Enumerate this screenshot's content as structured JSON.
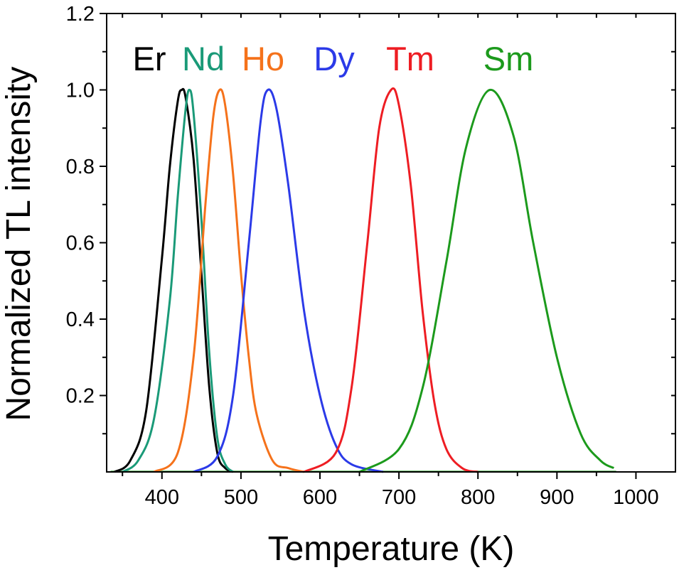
{
  "chart_data": {
    "type": "line",
    "title": "",
    "xlabel": "Temperature (K)",
    "ylabel": "Normalized TL intensity",
    "xlim": [
      330,
      1050
    ],
    "ylim": [
      0,
      1.2
    ],
    "x_ticks": [
      400,
      500,
      600,
      700,
      800,
      900,
      1000
    ],
    "x_tick_labels": [
      "400",
      "500",
      "600",
      "700",
      "800",
      "900",
      "1000"
    ],
    "y_ticks": [
      0.2,
      0.4,
      0.6,
      0.8,
      1.0,
      1.2
    ],
    "y_tick_labels": [
      "0.2",
      "0.4",
      "0.6",
      "0.8",
      "1.0",
      "1.2"
    ],
    "grid": false,
    "legend": "top, inline labels",
    "series": [
      {
        "name": "Er",
        "color": "#000000",
        "peak_x": 425,
        "peak_y": 1.0,
        "x": [
          340,
          360,
          380,
          400,
          410,
          420,
          425,
          430,
          440,
          450,
          460,
          470,
          480,
          490
        ],
        "y": [
          0.0,
          0.03,
          0.16,
          0.56,
          0.8,
          0.97,
          1.0,
          0.98,
          0.82,
          0.52,
          0.22,
          0.05,
          0.01,
          0.0
        ]
      },
      {
        "name": "Nd",
        "color": "#1a9a78",
        "peak_x": 435,
        "peak_y": 1.0,
        "x": [
          350,
          370,
          390,
          410,
          420,
          430,
          435,
          440,
          450,
          460,
          470,
          480,
          490
        ],
        "y": [
          0.0,
          0.03,
          0.14,
          0.45,
          0.72,
          0.95,
          1.0,
          0.94,
          0.66,
          0.31,
          0.09,
          0.02,
          0.0
        ]
      },
      {
        "name": "Ho",
        "color": "#f5721b",
        "peak_x": 473,
        "peak_y": 1.0,
        "x": [
          390,
          420,
          440,
          455,
          465,
          473,
          480,
          490,
          500,
          510,
          520,
          540,
          560,
          580
        ],
        "y": [
          0.0,
          0.05,
          0.3,
          0.7,
          0.93,
          1.0,
          0.96,
          0.78,
          0.52,
          0.3,
          0.15,
          0.03,
          0.01,
          0.0
        ]
      },
      {
        "name": "Dy",
        "color": "#2b3ae8",
        "peak_x": 534,
        "peak_y": 1.0,
        "x": [
          440,
          470,
          490,
          510,
          525,
          534,
          545,
          560,
          580,
          600,
          620,
          640,
          680
        ],
        "y": [
          0.0,
          0.04,
          0.2,
          0.6,
          0.92,
          1.0,
          0.95,
          0.75,
          0.42,
          0.2,
          0.07,
          0.02,
          0.0
        ]
      },
      {
        "name": "Tm",
        "color": "#ee1d23",
        "peak_x": 690,
        "peak_y": 1.0,
        "x": [
          580,
          620,
          640,
          660,
          675,
          690,
          700,
          715,
          730,
          745,
          760,
          780,
          800
        ],
        "y": [
          0.0,
          0.05,
          0.22,
          0.6,
          0.9,
          1.0,
          0.96,
          0.75,
          0.42,
          0.18,
          0.06,
          0.01,
          0.0
        ]
      },
      {
        "name": "Sm",
        "color": "#1c9a1c",
        "peak_x": 815,
        "peak_y": 1.0,
        "x": [
          650,
          700,
          730,
          760,
          785,
          815,
          845,
          870,
          900,
          930,
          955,
          972
        ],
        "y": [
          0.0,
          0.06,
          0.22,
          0.55,
          0.85,
          1.0,
          0.88,
          0.6,
          0.3,
          0.1,
          0.03,
          0.01
        ]
      }
    ]
  }
}
